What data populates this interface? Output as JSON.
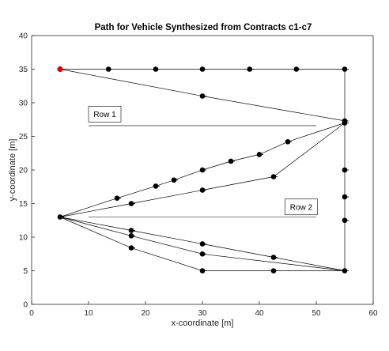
{
  "chart_data": {
    "type": "line",
    "title": "Path for Vehicle Synthesized from Contracts c1-c7",
    "xlabel": "x-coordinate [m]",
    "ylabel": "y-coordinate [m]",
    "xlim": [
      0,
      60
    ],
    "ylim": [
      0,
      40
    ],
    "xticks": [
      "0",
      "10",
      "20",
      "30",
      "40",
      "50",
      "60"
    ],
    "yticks": [
      "0",
      "5",
      "10",
      "15",
      "20",
      "25",
      "30",
      "35",
      "40"
    ],
    "grid": false,
    "start_point": {
      "x": 5,
      "y": 35,
      "color": "#e00000"
    },
    "path_color": "#000000",
    "segments": [
      {
        "x": [
          5,
          13.5,
          21.8,
          30,
          38.3,
          46.5,
          55
        ],
        "y": [
          35,
          35,
          35,
          35,
          35,
          35,
          35
        ]
      },
      {
        "x": [
          55,
          55,
          55,
          55,
          55,
          55,
          55,
          55
        ],
        "y": [
          35,
          27.3,
          27,
          20,
          16,
          12.5,
          5,
          5
        ]
      },
      {
        "x": [
          5,
          30,
          55
        ],
        "y": [
          35,
          31,
          27.3
        ]
      },
      {
        "x": [
          55,
          45,
          40,
          35,
          30,
          25,
          21.8,
          15,
          5
        ],
        "y": [
          27,
          24.2,
          22.3,
          21.3,
          20,
          18.5,
          17.6,
          15.8,
          13
        ]
      },
      {
        "x": [
          55,
          42.5,
          30,
          17.5,
          5
        ],
        "y": [
          27,
          19,
          17,
          15,
          13
        ]
      },
      {
        "x": [
          5,
          17.5,
          30,
          42.5,
          55
        ],
        "y": [
          13,
          11,
          9,
          7,
          5
        ]
      },
      {
        "x": [
          5,
          17.5,
          30,
          55
        ],
        "y": [
          13,
          10.2,
          7.5,
          5
        ]
      },
      {
        "x": [
          5,
          17.5,
          30,
          42.5,
          55
        ],
        "y": [
          13,
          8.4,
          5,
          5,
          5
        ]
      }
    ],
    "points": {
      "x": [
        13.5,
        21.8,
        30,
        38.3,
        46.5,
        55,
        30,
        55,
        55,
        45,
        40,
        35,
        30,
        25,
        21.8,
        15,
        42.5,
        30,
        17.5,
        5,
        55,
        55,
        55,
        17.5,
        30,
        42.5,
        55,
        17.5,
        30,
        17.5,
        30,
        42.5
      ],
      "y": [
        35,
        35,
        35,
        35,
        35,
        35,
        31,
        27.3,
        27,
        24.2,
        22.3,
        21.3,
        20,
        18.5,
        17.6,
        15.8,
        19,
        17,
        15,
        13,
        20,
        16,
        12.5,
        11,
        9,
        7,
        5,
        10.2,
        7.5,
        8.4,
        5,
        5
      ]
    },
    "annotations": [
      {
        "label": "Row 1",
        "box": {
          "x": 10,
          "y": 28.3
        },
        "line": {
          "x": [
            10,
            50
          ],
          "y": [
            26.6,
            26.6
          ]
        }
      },
      {
        "label": "Row 2",
        "box": {
          "x": 44.5,
          "y": 14.5
        },
        "line": {
          "x": [
            10,
            50
          ],
          "y": [
            13,
            13
          ]
        }
      }
    ]
  }
}
